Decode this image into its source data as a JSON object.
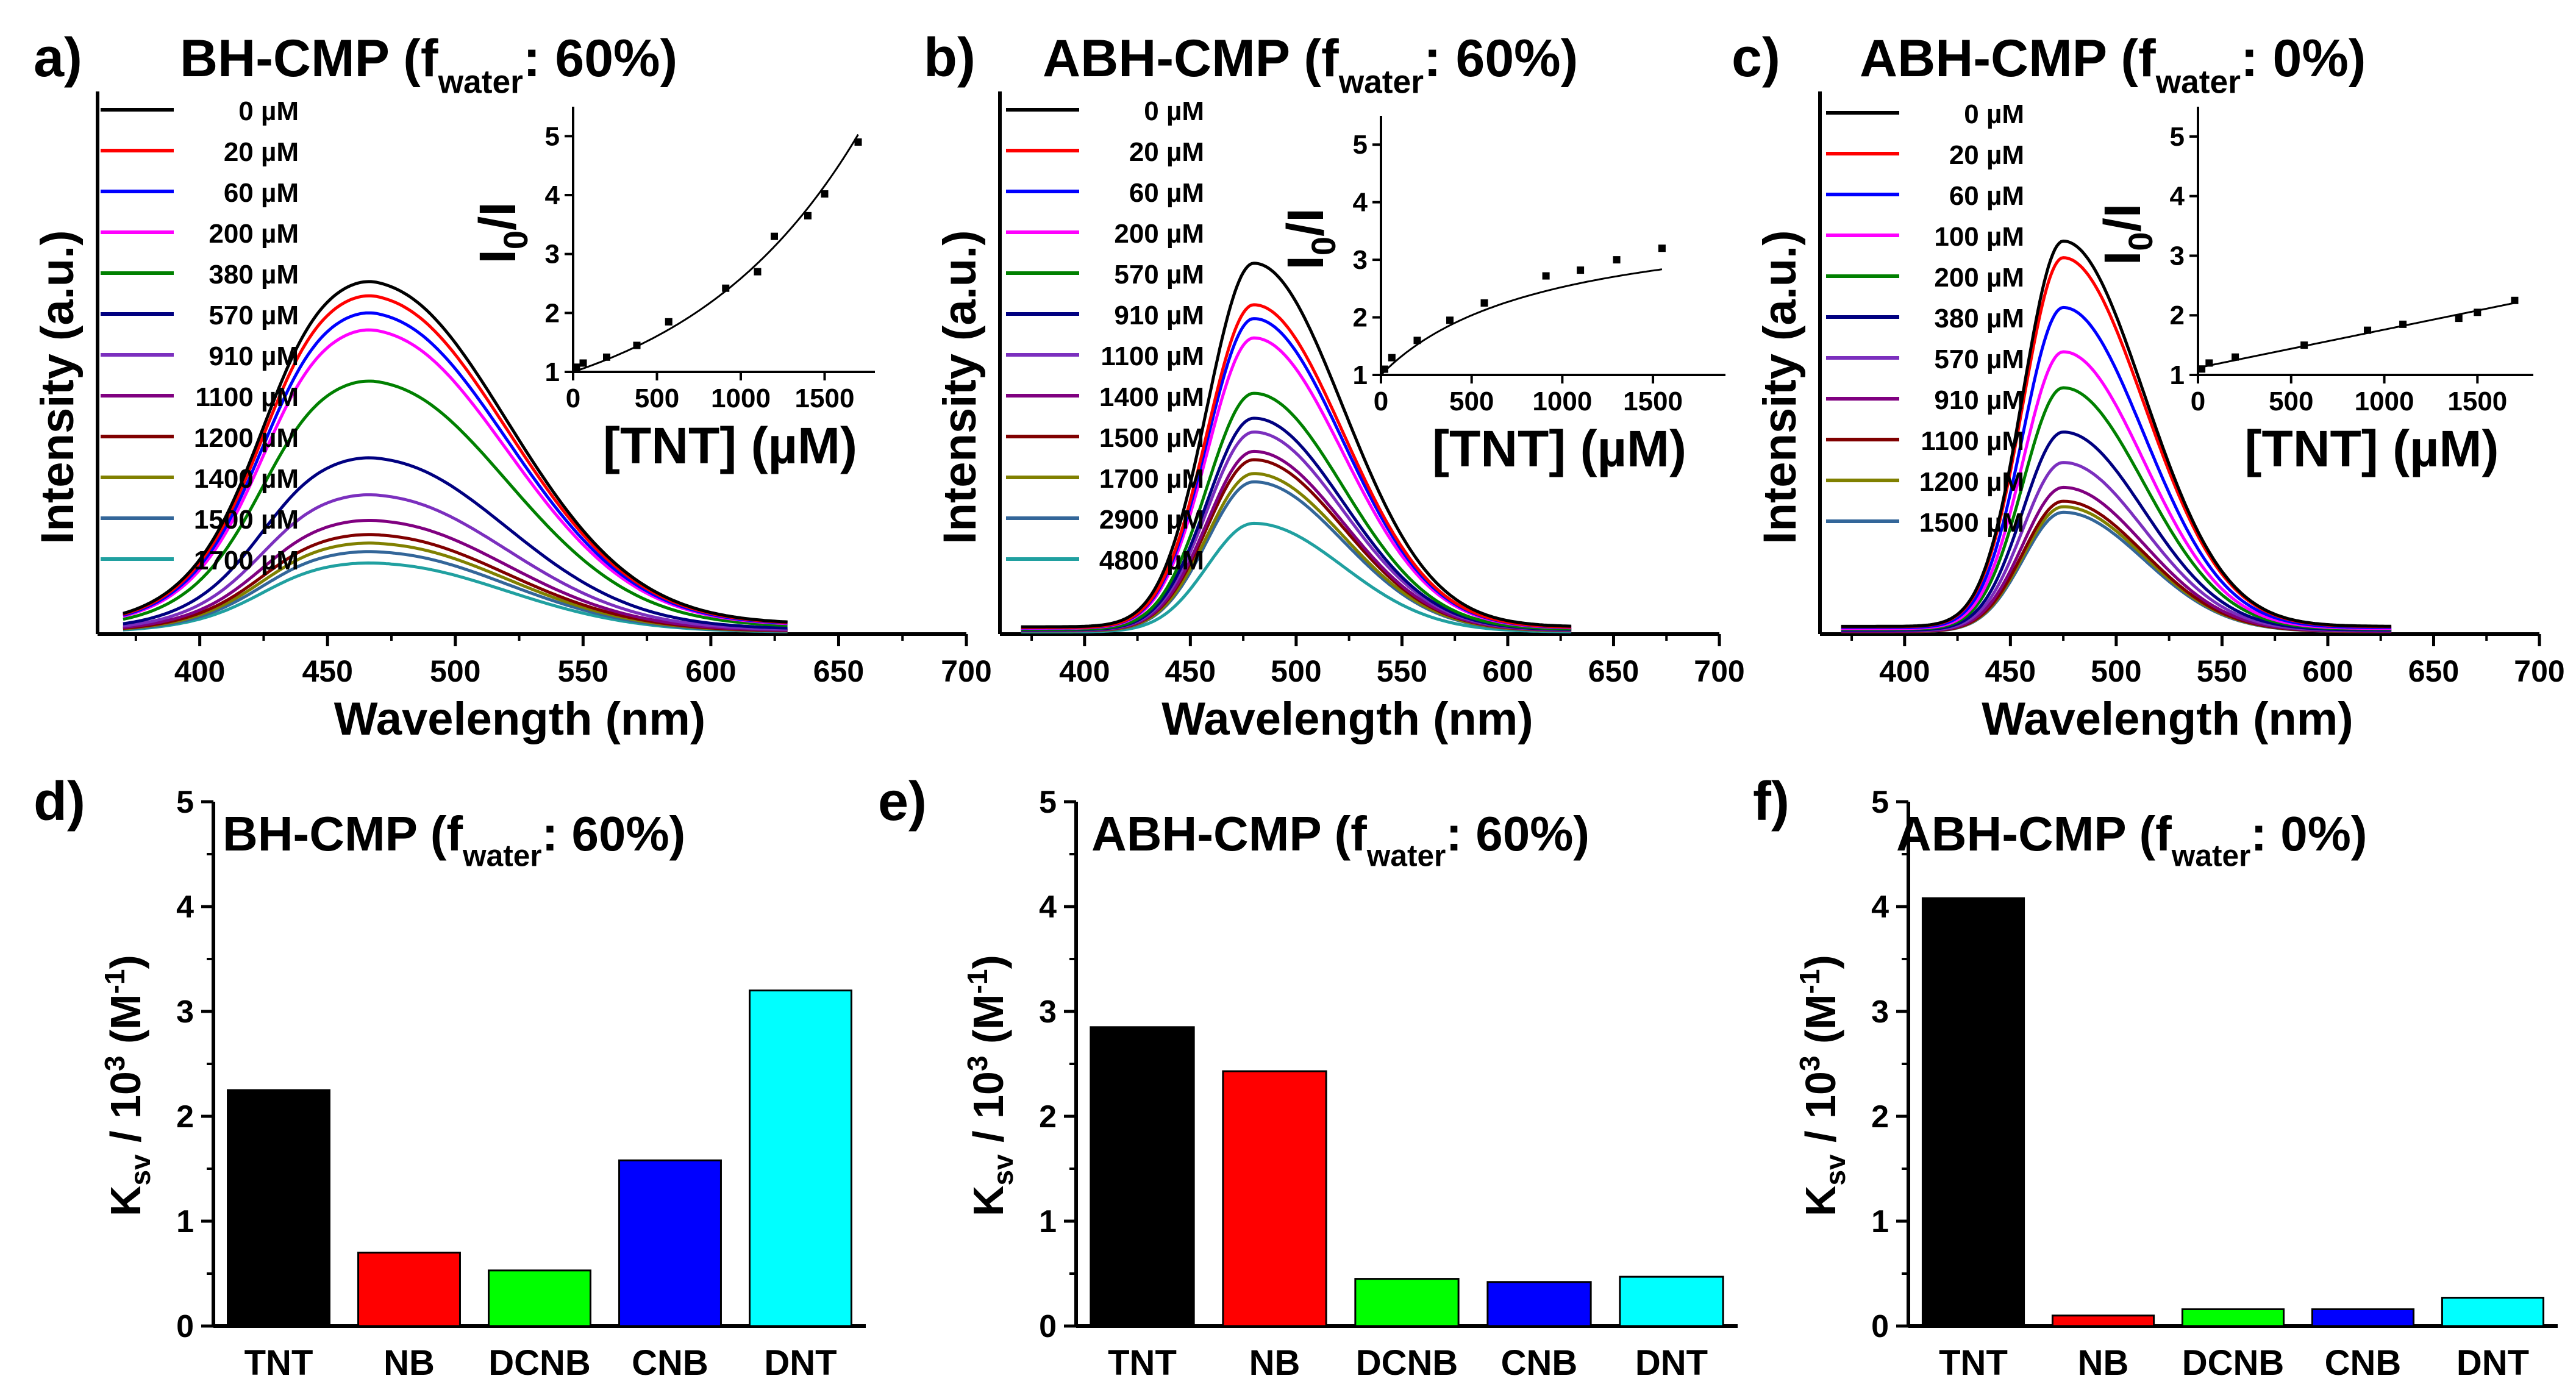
{
  "chart_data": [
    {
      "panel": "a)",
      "type": "line",
      "title": "BH-CMP (f",
      "title_sub": "water",
      "title_tail": ": 60%)",
      "xlabel": "Wavelength (nm)",
      "ylabel": "Intensity (a.u.)",
      "xlim": [
        360,
        700
      ],
      "xticks": [
        400,
        450,
        500,
        550,
        600,
        650,
        700
      ],
      "x_start": 370,
      "x_end": 630,
      "shape": {
        "mu": 470,
        "sigma_l": 38,
        "sigma_r": 50,
        "shoulder_mu": 437,
        "shoulder_sigma": 16,
        "shoulder_amp": 0.12,
        "baseline": 0.03
      },
      "series": [
        {
          "name": "0 µM",
          "color": "#000000",
          "peak": 0.62
        },
        {
          "name": "20 µM",
          "color": "#ff0000",
          "peak": 0.595
        },
        {
          "name": "60 µM",
          "color": "#0000ff",
          "peak": 0.565
        },
        {
          "name": "200 µM",
          "color": "#ff00ff",
          "peak": 0.535
        },
        {
          "name": "380 µM",
          "color": "#008000",
          "peak": 0.445
        },
        {
          "name": "570 µM",
          "color": "#000080",
          "peak": 0.31
        },
        {
          "name": "910 µM",
          "color": "#7b2fbe",
          "peak": 0.245
        },
        {
          "name": "1100 µM",
          "color": "#800080",
          "peak": 0.2
        },
        {
          "name": "1200 µM",
          "color": "#800000",
          "peak": 0.175
        },
        {
          "name": "1400 µM",
          "color": "#808000",
          "peak": 0.16
        },
        {
          "name": "1500 µM",
          "color": "#336699",
          "peak": 0.145
        },
        {
          "name": "1700 µM",
          "color": "#20a0a0",
          "peak": 0.125
        }
      ],
      "inset": {
        "type": "scatter",
        "ylabel": "I0/I",
        "xlabel": "[TNT] (µM)",
        "xlim": [
          0,
          1800
        ],
        "ylim": [
          1,
          5.5
        ],
        "xticks": [
          0,
          500,
          1000,
          1500
        ],
        "yticks": [
          1,
          2,
          3,
          4,
          5
        ],
        "x": [
          20,
          60,
          200,
          380,
          570,
          910,
          1100,
          1200,
          1400,
          1500,
          1700
        ],
        "y": [
          1.08,
          1.15,
          1.25,
          1.45,
          1.85,
          2.42,
          2.7,
          3.3,
          3.65,
          4.02,
          4.9
        ],
        "fit": {
          "kind": "exp",
          "a": 1,
          "b": 0.00095
        }
      }
    },
    {
      "panel": "b)",
      "type": "line",
      "title": "ABH-CMP (f",
      "title_sub": "water",
      "title_tail": ": 60%)",
      "xlabel": "Wavelength (nm)",
      "ylabel": "Intensity (a.u.)",
      "xlim": [
        360,
        700
      ],
      "xticks": [
        400,
        450,
        500,
        550,
        600,
        650,
        700
      ],
      "x_start": 370,
      "x_end": 630,
      "shape": {
        "mu": 480,
        "sigma_l": 22,
        "sigma_r": 42,
        "shoulder_mu": 0,
        "shoulder_sigma": 1,
        "shoulder_amp": 0,
        "baseline": 0.02
      },
      "series": [
        {
          "name": "0 µM",
          "color": "#000000",
          "peak": 0.67
        },
        {
          "name": "20 µM",
          "color": "#ff0000",
          "peak": 0.595
        },
        {
          "name": "60 µM",
          "color": "#0000ff",
          "peak": 0.57
        },
        {
          "name": "200 µM",
          "color": "#ff00ff",
          "peak": 0.535
        },
        {
          "name": "570 µM",
          "color": "#008000",
          "peak": 0.435
        },
        {
          "name": "910 µM",
          "color": "#000080",
          "peak": 0.39
        },
        {
          "name": "1100 µM",
          "color": "#7b2fbe",
          "peak": 0.365
        },
        {
          "name": "1400 µM",
          "color": "#800080",
          "peak": 0.33
        },
        {
          "name": "1500 µM",
          "color": "#800000",
          "peak": 0.315
        },
        {
          "name": "1700 µM",
          "color": "#808000",
          "peak": 0.29
        },
        {
          "name": "2900 µM",
          "color": "#336699",
          "peak": 0.275
        },
        {
          "name": "4800 µM",
          "color": "#20a0a0",
          "peak": 0.2
        }
      ],
      "inset": {
        "type": "scatter",
        "ylabel": "I0/I",
        "xlabel": "[TNT] (µM)",
        "xlim": [
          0,
          1900
        ],
        "ylim": [
          1,
          5.5
        ],
        "xticks": [
          0,
          500,
          1000,
          1500
        ],
        "yticks": [
          1,
          2,
          3,
          4,
          5
        ],
        "x": [
          20,
          60,
          200,
          380,
          570,
          910,
          1100,
          1300,
          1550
        ],
        "y": [
          1.1,
          1.3,
          1.6,
          1.95,
          2.25,
          2.72,
          2.82,
          3.0,
          3.2
        ],
        "fit": {
          "kind": "langmuir",
          "a": 1,
          "b": 2.9,
          "c": 900
        }
      }
    },
    {
      "panel": "c)",
      "type": "line",
      "title": "ABH-CMP (f",
      "title_sub": "water",
      "title_tail": ": 0%)",
      "xlabel": "Wavelength (nm)",
      "ylabel": "Intensity (a.u.)",
      "xlim": [
        360,
        700
      ],
      "xticks": [
        400,
        450,
        500,
        550,
        600,
        650,
        700
      ],
      "x_start": 370,
      "x_end": 630,
      "shape": {
        "mu": 475,
        "sigma_l": 19,
        "sigma_r": 38,
        "shoulder_mu": 0,
        "shoulder_sigma": 1,
        "shoulder_amp": 0,
        "baseline": 0.02
      },
      "series": [
        {
          "name": "0 µM",
          "color": "#000000",
          "peak": 0.71
        },
        {
          "name": "20 µM",
          "color": "#ff0000",
          "peak": 0.68
        },
        {
          "name": "60 µM",
          "color": "#0000ff",
          "peak": 0.59
        },
        {
          "name": "100 µM",
          "color": "#ff00ff",
          "peak": 0.51
        },
        {
          "name": "200 µM",
          "color": "#008000",
          "peak": 0.445
        },
        {
          "name": "380 µM",
          "color": "#000080",
          "peak": 0.365
        },
        {
          "name": "570 µM",
          "color": "#7b2fbe",
          "peak": 0.31
        },
        {
          "name": "910 µM",
          "color": "#800080",
          "peak": 0.265
        },
        {
          "name": "1100 µM",
          "color": "#800000",
          "peak": 0.24
        },
        {
          "name": "1200 µM",
          "color": "#808000",
          "peak": 0.23
        },
        {
          "name": "1500 µM",
          "color": "#336699",
          "peak": 0.22
        }
      ],
      "inset": {
        "type": "scatter",
        "ylabel": "I0/I",
        "xlabel": "[TNT] (µM)",
        "xlim": [
          0,
          1800
        ],
        "ylim": [
          1,
          5.5
        ],
        "xticks": [
          0,
          500,
          1000,
          1500
        ],
        "yticks": [
          1,
          2,
          3,
          4,
          5
        ],
        "x": [
          20,
          60,
          200,
          570,
          910,
          1100,
          1400,
          1500,
          1700
        ],
        "y": [
          1.1,
          1.2,
          1.3,
          1.5,
          1.75,
          1.85,
          1.95,
          2.05,
          2.25
        ],
        "fit": {
          "kind": "linear",
          "a": 1.12,
          "b": 0.00064
        }
      }
    },
    {
      "panel": "d)",
      "type": "bar",
      "title": "BH-CMP (f",
      "title_sub": "water",
      "title_tail": ": 60%)",
      "ylabel_main": "K",
      "ylabel_sub": "sv",
      "ylabel_mid": " / 10",
      "ylabel_sup": "3",
      "ylabel_unit": " (M",
      "ylabel_unit_sup": "-1",
      "ylabel_end": ")",
      "ylim": [
        0,
        5
      ],
      "yticks": [
        0,
        1,
        2,
        3,
        4,
        5
      ],
      "categories": [
        "TNT",
        "NB",
        "DCNB",
        "CNB",
        "DNT"
      ],
      "values": [
        2.25,
        0.7,
        0.53,
        1.58,
        3.2
      ],
      "colors": [
        "#000000",
        "#ff0000",
        "#00ff00",
        "#0000ff",
        "#00ffff"
      ]
    },
    {
      "panel": "e)",
      "type": "bar",
      "title": "ABH-CMP (f",
      "title_sub": "water",
      "title_tail": ": 60%)",
      "ylabel_main": "K",
      "ylabel_sub": "sv",
      "ylabel_mid": " / 10",
      "ylabel_sup": "3",
      "ylabel_unit": " (M",
      "ylabel_unit_sup": "-1",
      "ylabel_end": ")",
      "ylim": [
        0,
        5
      ],
      "yticks": [
        0,
        1,
        2,
        3,
        4,
        5
      ],
      "categories": [
        "TNT",
        "NB",
        "DCNB",
        "CNB",
        "DNT"
      ],
      "values": [
        2.85,
        2.43,
        0.45,
        0.42,
        0.47
      ],
      "colors": [
        "#000000",
        "#ff0000",
        "#00ff00",
        "#0000ff",
        "#00ffff"
      ]
    },
    {
      "panel": "f)",
      "type": "bar",
      "title": "ABH-CMP (f",
      "title_sub": "water",
      "title_tail": ": 0%)",
      "ylabel_main": "K",
      "ylabel_sub": "sv",
      "ylabel_mid": " / 10",
      "ylabel_sup": "3",
      "ylabel_unit": " (M",
      "ylabel_unit_sup": "-1",
      "ylabel_end": ")",
      "ylim": [
        0,
        5
      ],
      "yticks": [
        0,
        1,
        2,
        3,
        4,
        5
      ],
      "categories": [
        "TNT",
        "NB",
        "DCNB",
        "CNB",
        "DNT"
      ],
      "values": [
        4.08,
        0.1,
        0.16,
        0.16,
        0.27
      ],
      "colors": [
        "#000000",
        "#ff0000",
        "#00ff00",
        "#0000ff",
        "#00ffff"
      ]
    }
  ]
}
